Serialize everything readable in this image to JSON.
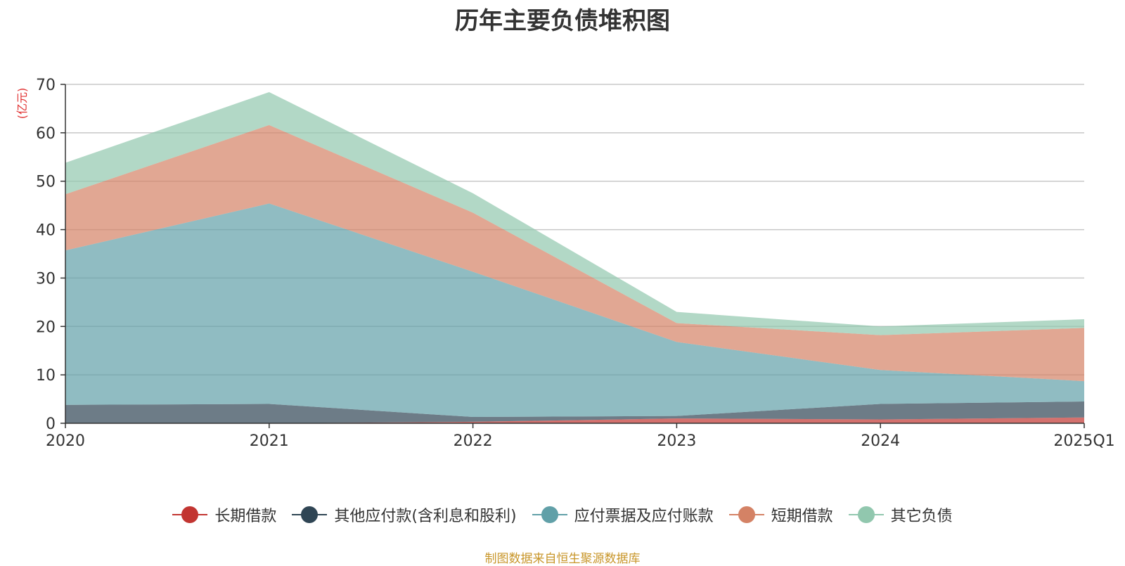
{
  "chart_data": {
    "type": "area",
    "stacked": true,
    "title": "历年主要负债堆积图",
    "ylabel": "(亿元)",
    "xlabel": "",
    "x": [
      "2020",
      "2021",
      "2022",
      "2023",
      "2024",
      "2025Q1"
    ],
    "ylim": [
      0,
      70
    ],
    "yticks": [
      0,
      10,
      20,
      30,
      40,
      50,
      60,
      70
    ],
    "grid": true,
    "legend_position": "bottom",
    "series": [
      {
        "name": "长期借款",
        "color": "#c23531",
        "values": [
          0.0,
          0.0,
          0.3,
          1.0,
          0.8,
          1.2
        ]
      },
      {
        "name": "其他应付款(含利息和股利)",
        "color": "#2f4554",
        "values": [
          3.8,
          4.0,
          1.0,
          0.5,
          3.2,
          3.3
        ]
      },
      {
        "name": "应付票据及应付账款",
        "color": "#61a0a8",
        "values": [
          31.9,
          41.4,
          30.0,
          15.3,
          7.0,
          4.2
        ]
      },
      {
        "name": "短期借款",
        "color": "#d48265",
        "values": [
          11.6,
          16.2,
          12.2,
          3.9,
          7.2,
          11.0
        ]
      },
      {
        "name": "其它负债",
        "color": "#91c7ae",
        "values": [
          6.5,
          6.8,
          4.0,
          2.3,
          1.8,
          1.8
        ]
      }
    ]
  },
  "footer": {
    "source_note": "制图数据来自恒生聚源数据库"
  }
}
